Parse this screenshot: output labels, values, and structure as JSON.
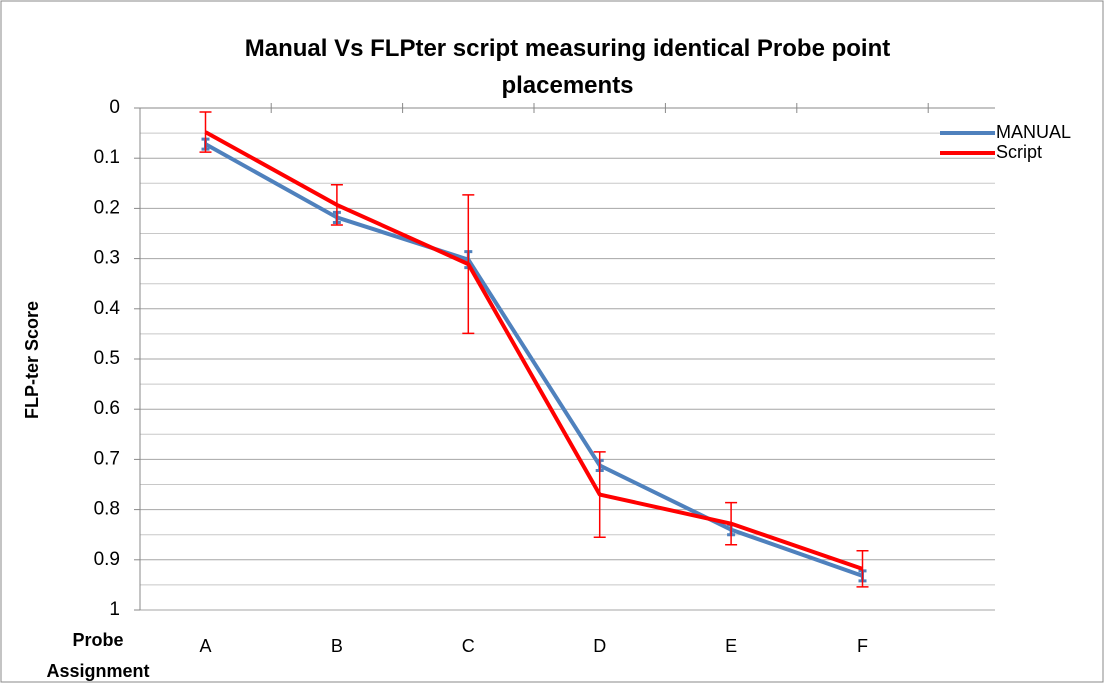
{
  "chart_data": {
    "type": "line",
    "title": "Manual Vs FLPter script measuring identical Probe point placements",
    "x_label": "Probe Assignment",
    "y_label": "FLP-ter Score",
    "categories": [
      "A",
      "B",
      "C",
      "D",
      "E",
      "F"
    ],
    "series": [
      {
        "name": "MANUAL",
        "color": "#4f81bd",
        "values": [
          0.072,
          0.218,
          0.302,
          0.712,
          0.84,
          0.932
        ],
        "errors": [
          0.01,
          0.01,
          0.016,
          0.01,
          0.01,
          0.01
        ]
      },
      {
        "name": "Script",
        "color": "#ff0000",
        "values": [
          0.048,
          0.193,
          0.311,
          0.77,
          0.828,
          0.918
        ],
        "errors": [
          0.04,
          0.04,
          0.138,
          0.085,
          0.042,
          0.036
        ]
      }
    ],
    "ylim": [
      0,
      1
    ],
    "y_reversed": true,
    "yticks": [
      0,
      0.1,
      0.2,
      0.3,
      0.4,
      0.5,
      0.6,
      0.7,
      0.8,
      0.9,
      1
    ],
    "y_minor_ticks": [
      0.05,
      0.15,
      0.25,
      0.35,
      0.45,
      0.55,
      0.65,
      0.75,
      0.85,
      0.95
    ],
    "grid": true,
    "legend": "top-right"
  }
}
